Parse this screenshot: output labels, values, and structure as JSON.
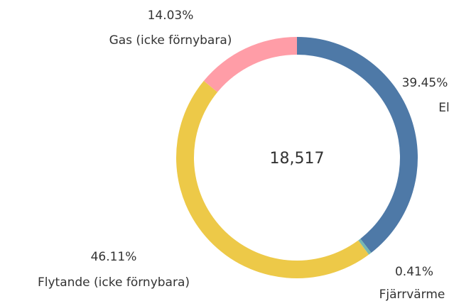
{
  "chart_data": {
    "type": "donut",
    "categories": [
      "El",
      "Fjärrvärme",
      "Flytande (icke förnybara)",
      "Gas (icke förnybara)"
    ],
    "values": [
      39.45,
      0.41,
      46.11,
      14.03
    ],
    "value_labels": [
      "39.45%",
      "0.41%",
      "46.11%",
      "14.03%"
    ],
    "colors": [
      "#4e79a7",
      "#76b7b2",
      "#edc948",
      "#ff9da7"
    ],
    "center_label": "18,517"
  }
}
